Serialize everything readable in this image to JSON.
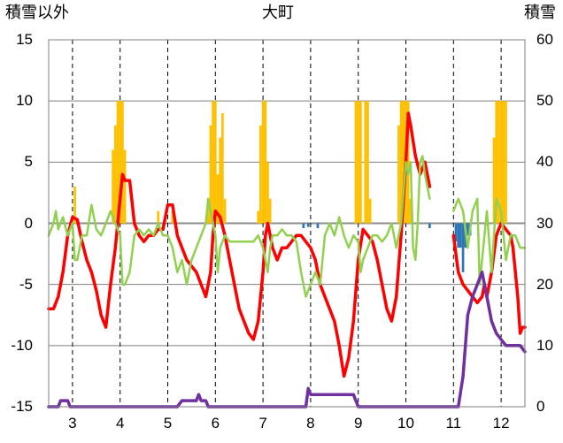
{
  "chart_data": {
    "type": "line",
    "title": "大町",
    "left_axis_title": "積雪以外",
    "right_axis_title": "積雪",
    "y_left": {
      "min": -15,
      "max": 15,
      "ticks": [
        15,
        10,
        5,
        0,
        -5,
        -10,
        -15
      ]
    },
    "y_right": {
      "min": 0,
      "max": 60,
      "ticks": [
        60,
        50,
        40,
        30,
        20,
        10,
        0
      ]
    },
    "x": {
      "min": 2.5,
      "max": 12.5,
      "ticks": [
        3,
        4,
        5,
        6,
        7,
        8,
        9,
        10,
        11,
        12
      ]
    },
    "grid": {
      "horizontal": "solid",
      "vertical": "dashed"
    },
    "colors": {
      "precip": "#ffc000",
      "negative_bars": "#2e75b6",
      "red_line": "#ff0000",
      "green_line": "#92d050",
      "purple_line": "#7030a0",
      "grid": "#7f7f7f",
      "zero_line": "#8c8c8c"
    },
    "series": [
      {
        "axis": "left",
        "style": "bars",
        "color": "#ffc000",
        "points": [
          [
            3.05,
            3
          ],
          [
            3.85,
            6
          ],
          [
            3.9,
            8
          ],
          [
            3.95,
            10
          ],
          [
            4.0,
            10
          ],
          [
            4.05,
            10
          ],
          [
            4.1,
            6
          ],
          [
            4.8,
            1
          ],
          [
            5.1,
            1
          ],
          [
            5.85,
            2
          ],
          [
            5.9,
            8
          ],
          [
            5.95,
            10
          ],
          [
            6.0,
            10
          ],
          [
            6.05,
            4
          ],
          [
            6.1,
            7
          ],
          [
            6.15,
            9
          ],
          [
            6.2,
            2
          ],
          [
            6.9,
            1
          ],
          [
            6.95,
            8
          ],
          [
            7.0,
            10
          ],
          [
            7.05,
            10
          ],
          [
            7.1,
            5
          ],
          [
            7.15,
            2
          ],
          [
            8.95,
            10
          ],
          [
            9.0,
            10
          ],
          [
            9.05,
            10
          ],
          [
            9.15,
            10
          ],
          [
            9.2,
            10
          ],
          [
            9.25,
            2
          ],
          [
            9.85,
            8
          ],
          [
            9.9,
            10
          ],
          [
            9.95,
            10
          ],
          [
            10.0,
            10
          ],
          [
            10.05,
            10
          ],
          [
            10.1,
            2
          ],
          [
            11.85,
            7
          ],
          [
            11.9,
            10
          ],
          [
            11.95,
            10
          ],
          [
            12.0,
            10
          ],
          [
            12.05,
            10
          ],
          [
            12.1,
            10
          ]
        ]
      },
      {
        "axis": "left",
        "style": "bars",
        "color": "#2e75b6",
        "points": [
          [
            7.85,
            -0.4
          ],
          [
            7.95,
            -0.3
          ],
          [
            8.15,
            -0.4
          ],
          [
            10.5,
            -0.4
          ],
          [
            11.05,
            -1.5
          ],
          [
            11.1,
            -2
          ],
          [
            11.15,
            -2
          ],
          [
            11.2,
            -4
          ],
          [
            11.25,
            -2
          ],
          [
            11.3,
            -1
          ],
          [
            11.35,
            -1
          ]
        ]
      },
      {
        "axis": "left",
        "style": "line",
        "color": "#ff0000",
        "points": [
          [
            2.5,
            -7
          ],
          [
            2.6,
            -7
          ],
          [
            2.7,
            -6
          ],
          [
            2.8,
            -4
          ],
          [
            2.9,
            -1
          ],
          [
            3.0,
            0.5
          ],
          [
            3.1,
            0.3
          ],
          [
            3.2,
            -1.5
          ],
          [
            3.3,
            -3
          ],
          [
            3.4,
            -4
          ],
          [
            3.5,
            -5.5
          ],
          [
            3.6,
            -7.5
          ],
          [
            3.7,
            -8.5
          ],
          [
            3.8,
            -5
          ],
          [
            3.9,
            -2
          ],
          [
            4.0,
            2
          ],
          [
            4.05,
            4
          ],
          [
            4.1,
            3.5
          ],
          [
            4.2,
            3.5
          ],
          [
            4.3,
            0
          ],
          [
            4.4,
            -1
          ],
          [
            4.5,
            -1.5
          ],
          [
            4.6,
            -1
          ],
          [
            4.7,
            -1
          ],
          [
            4.8,
            -0.5
          ],
          [
            4.9,
            -0.5
          ],
          [
            5.0,
            1.5
          ],
          [
            5.1,
            1.5
          ],
          [
            5.2,
            -1
          ],
          [
            5.3,
            -2
          ],
          [
            5.4,
            -3
          ],
          [
            5.5,
            -3.5
          ],
          [
            5.6,
            -4
          ],
          [
            5.7,
            -5
          ],
          [
            5.8,
            -6
          ],
          [
            5.85,
            -5
          ],
          [
            5.9,
            -4
          ],
          [
            5.95,
            -1
          ],
          [
            6.0,
            1
          ],
          [
            6.1,
            0.5
          ],
          [
            6.2,
            -1
          ],
          [
            6.3,
            -3
          ],
          [
            6.4,
            -5
          ],
          [
            6.5,
            -7
          ],
          [
            6.6,
            -8
          ],
          [
            6.7,
            -9
          ],
          [
            6.8,
            -9.5
          ],
          [
            6.9,
            -8
          ],
          [
            7.0,
            -4
          ],
          [
            7.05,
            -1
          ],
          [
            7.1,
            0
          ],
          [
            7.2,
            -2
          ],
          [
            7.3,
            -3
          ],
          [
            7.4,
            -2
          ],
          [
            7.5,
            -2
          ],
          [
            7.6,
            -1.5
          ],
          [
            7.7,
            -1
          ],
          [
            7.8,
            -1
          ],
          [
            7.9,
            -1.5
          ],
          [
            8.0,
            -2
          ],
          [
            8.1,
            -3
          ],
          [
            8.2,
            -5
          ],
          [
            8.3,
            -6
          ],
          [
            8.4,
            -7
          ],
          [
            8.5,
            -8
          ],
          [
            8.6,
            -10
          ],
          [
            8.7,
            -12.5
          ],
          [
            8.8,
            -11
          ],
          [
            8.9,
            -8
          ],
          [
            9.0,
            -3
          ],
          [
            9.1,
            -0.5
          ],
          [
            9.2,
            -1
          ],
          [
            9.3,
            -1.5
          ],
          [
            9.4,
            -3
          ],
          [
            9.5,
            -5
          ],
          [
            9.6,
            -7
          ],
          [
            9.7,
            -8
          ],
          [
            9.8,
            -6
          ],
          [
            9.9,
            -1
          ],
          [
            10.0,
            5
          ],
          [
            10.05,
            9
          ],
          [
            10.1,
            8
          ],
          [
            10.2,
            5.5
          ],
          [
            10.3,
            4
          ],
          [
            10.4,
            5
          ],
          [
            10.5,
            3
          ]
        ]
      },
      {
        "axis": "left",
        "style": "line",
        "color": "#ff0000",
        "points": [
          [
            11.0,
            -1
          ],
          [
            11.1,
            -4
          ],
          [
            11.2,
            -5
          ],
          [
            11.3,
            -5.5
          ],
          [
            11.4,
            -6
          ],
          [
            11.5,
            -6.5
          ],
          [
            11.6,
            -6
          ],
          [
            11.65,
            -5
          ],
          [
            11.7,
            -6
          ],
          [
            11.8,
            -4
          ],
          [
            11.9,
            -1
          ],
          [
            12.0,
            0
          ],
          [
            12.1,
            -0.5
          ],
          [
            12.2,
            -1
          ],
          [
            12.25,
            -2
          ],
          [
            12.3,
            -4
          ],
          [
            12.35,
            -6
          ],
          [
            12.4,
            -9
          ],
          [
            12.45,
            -8.5
          ],
          [
            12.5,
            -8.5
          ]
        ]
      },
      {
        "axis": "left",
        "style": "line",
        "color": "#92d050",
        "points": [
          [
            2.5,
            -1
          ],
          [
            2.6,
            0
          ],
          [
            2.65,
            1
          ],
          [
            2.7,
            -0.5
          ],
          [
            2.8,
            0.5
          ],
          [
            2.9,
            -1
          ],
          [
            3.0,
            0
          ],
          [
            3.05,
            -3
          ],
          [
            3.1,
            -3
          ],
          [
            3.2,
            -1
          ],
          [
            3.3,
            -1
          ],
          [
            3.4,
            1.5
          ],
          [
            3.5,
            -0.5
          ],
          [
            3.6,
            -1
          ],
          [
            3.7,
            0
          ],
          [
            3.8,
            1
          ],
          [
            3.9,
            0
          ],
          [
            4.0,
            -1
          ],
          [
            4.05,
            -5
          ],
          [
            4.1,
            -5
          ],
          [
            4.2,
            -4
          ],
          [
            4.3,
            -1
          ],
          [
            4.4,
            -0.5
          ],
          [
            4.5,
            -1
          ],
          [
            4.6,
            -0.5
          ],
          [
            4.7,
            -1
          ],
          [
            4.8,
            0
          ],
          [
            4.9,
            -1
          ],
          [
            5.0,
            -1
          ],
          [
            5.1,
            -2
          ],
          [
            5.2,
            -4
          ],
          [
            5.3,
            -3
          ],
          [
            5.4,
            -5
          ],
          [
            5.5,
            -3
          ],
          [
            5.6,
            -2
          ],
          [
            5.7,
            -1
          ],
          [
            5.8,
            0
          ],
          [
            5.85,
            2
          ],
          [
            5.9,
            1
          ],
          [
            6.0,
            -1
          ],
          [
            6.05,
            -4
          ],
          [
            6.1,
            -2
          ],
          [
            6.2,
            -1
          ],
          [
            6.3,
            -1.5
          ],
          [
            6.4,
            -1.5
          ],
          [
            6.5,
            -1.5
          ],
          [
            6.6,
            -1.5
          ],
          [
            6.7,
            -1.5
          ],
          [
            6.8,
            -1.5
          ],
          [
            6.9,
            -1
          ],
          [
            7.0,
            -2
          ],
          [
            7.1,
            -4
          ],
          [
            7.15,
            -2
          ],
          [
            7.2,
            -1
          ],
          [
            7.3,
            -1
          ],
          [
            7.4,
            -0.5
          ],
          [
            7.5,
            -1
          ],
          [
            7.6,
            -1
          ],
          [
            7.7,
            -1.5
          ],
          [
            7.8,
            -4
          ],
          [
            7.9,
            -6
          ],
          [
            8.0,
            -5
          ],
          [
            8.1,
            -4
          ],
          [
            8.2,
            -5
          ],
          [
            8.3,
            -1
          ],
          [
            8.4,
            0
          ],
          [
            8.5,
            -1
          ],
          [
            8.6,
            0.5
          ],
          [
            8.7,
            -1
          ],
          [
            8.8,
            -2
          ],
          [
            8.9,
            -1
          ],
          [
            9.0,
            -1.5
          ],
          [
            9.05,
            -4
          ],
          [
            9.1,
            -3
          ],
          [
            9.2,
            -2
          ],
          [
            9.3,
            -1
          ],
          [
            9.4,
            -1
          ],
          [
            9.5,
            -1.5
          ],
          [
            9.6,
            -1
          ],
          [
            9.7,
            0
          ],
          [
            9.8,
            -2
          ],
          [
            9.9,
            0
          ],
          [
            10.0,
            5
          ],
          [
            10.05,
            4
          ],
          [
            10.1,
            5
          ],
          [
            10.15,
            -2
          ],
          [
            10.2,
            -3
          ],
          [
            10.25,
            0
          ],
          [
            10.3,
            5
          ],
          [
            10.35,
            5.5
          ],
          [
            10.4,
            4
          ],
          [
            10.5,
            2
          ]
        ]
      },
      {
        "axis": "left",
        "style": "line",
        "color": "#92d050",
        "points": [
          [
            11.0,
            1
          ],
          [
            11.1,
            2
          ],
          [
            11.2,
            1
          ],
          [
            11.3,
            -2
          ],
          [
            11.4,
            1
          ],
          [
            11.5,
            2
          ],
          [
            11.55,
            -5
          ],
          [
            11.6,
            -3
          ],
          [
            11.7,
            1
          ],
          [
            11.8,
            -4
          ],
          [
            11.9,
            2
          ],
          [
            12.0,
            1
          ],
          [
            12.1,
            -3
          ],
          [
            12.2,
            -1
          ],
          [
            12.3,
            -1
          ],
          [
            12.4,
            -2
          ],
          [
            12.5,
            -2
          ]
        ]
      },
      {
        "axis": "right",
        "style": "line",
        "color": "#7030a0",
        "points": [
          [
            2.5,
            0
          ],
          [
            2.7,
            0
          ],
          [
            2.75,
            1
          ],
          [
            2.9,
            1
          ],
          [
            2.95,
            0
          ],
          [
            5.2,
            0
          ],
          [
            5.3,
            1
          ],
          [
            5.6,
            1
          ],
          [
            5.65,
            2
          ],
          [
            5.7,
            1
          ],
          [
            5.8,
            1
          ],
          [
            5.85,
            0
          ],
          [
            7.9,
            0
          ],
          [
            7.95,
            3
          ],
          [
            8.0,
            2
          ],
          [
            8.9,
            2
          ],
          [
            9.0,
            0
          ],
          [
            11.1,
            0
          ],
          [
            11.2,
            5
          ],
          [
            11.3,
            15
          ],
          [
            11.4,
            18
          ],
          [
            11.5,
            20
          ],
          [
            11.6,
            22
          ],
          [
            11.7,
            18
          ],
          [
            11.8,
            14
          ],
          [
            11.9,
            12
          ],
          [
            12.0,
            11
          ],
          [
            12.1,
            10
          ],
          [
            12.2,
            10
          ],
          [
            12.4,
            10
          ],
          [
            12.5,
            9
          ]
        ]
      }
    ]
  }
}
